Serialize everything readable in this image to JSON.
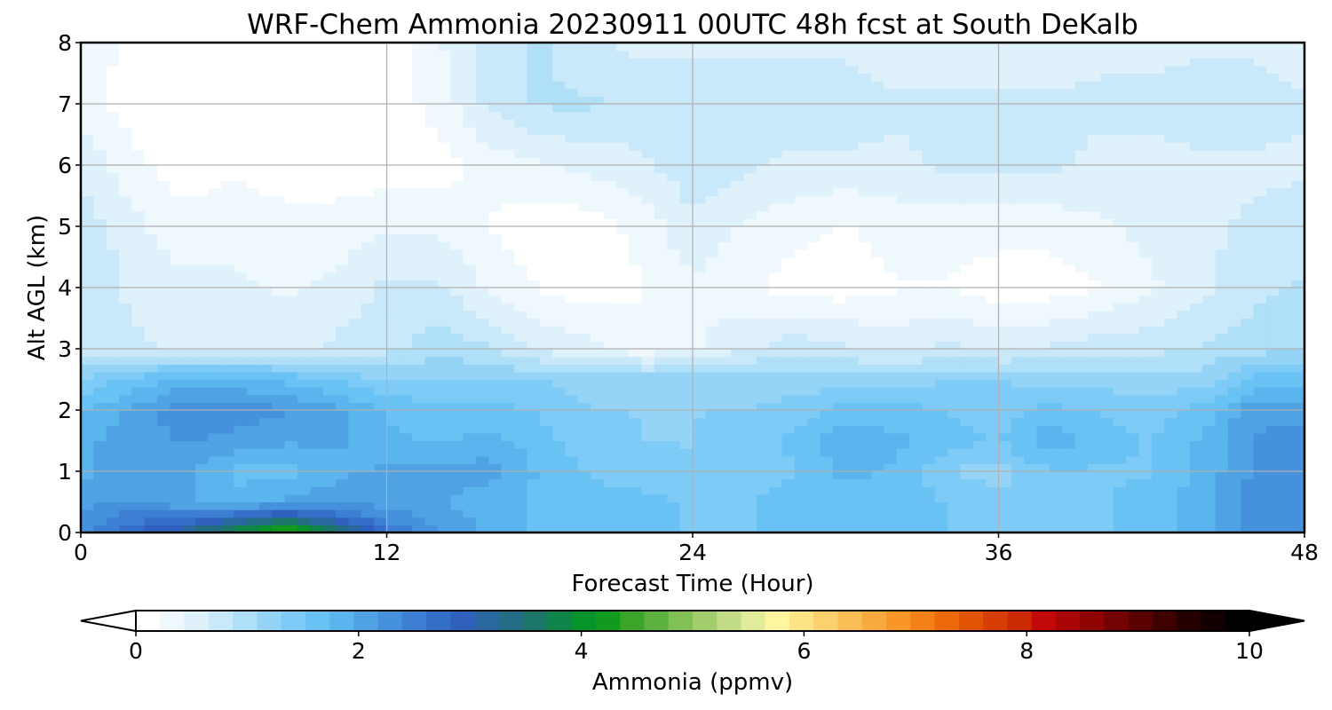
{
  "chart_data": {
    "type": "heatmap",
    "title": "WRF-Chem Ammonia  20230911 00UTC 48h fcst at South DeKalb",
    "xlabel": "Forecast Time (Hour)",
    "ylabel": "Alt AGL (km)",
    "xlim": [
      0,
      48
    ],
    "ylim": [
      0,
      8
    ],
    "x_ticks": [
      "0",
      "12",
      "24",
      "36",
      "48"
    ],
    "y_ticks": [
      "0",
      "1",
      "2",
      "3",
      "4",
      "5",
      "6",
      "7",
      "8"
    ],
    "grid": true,
    "x": [
      0,
      2,
      4,
      6,
      8,
      10,
      12,
      14,
      16,
      18,
      20,
      22,
      24,
      26,
      28,
      30,
      32,
      34,
      36,
      38,
      40,
      42,
      44,
      46,
      48
    ],
    "y": [
      0,
      0.25,
      0.5,
      1,
      1.5,
      2,
      2.5,
      3,
      4,
      5,
      6,
      7,
      8
    ],
    "z": [
      [
        2.2,
        2.8,
        3.2,
        3.9,
        4.6,
        3.6,
        2.6,
        2.2,
        1.9,
        1.7,
        1.6,
        1.6,
        1.5,
        1.5,
        1.6,
        1.6,
        1.7,
        1.5,
        1.4,
        1.5,
        1.5,
        1.6,
        1.9,
        2.3,
        2.3
      ],
      [
        2.2,
        2.5,
        2.6,
        2.9,
        3.2,
        2.8,
        2.3,
        2.1,
        1.9,
        1.7,
        1.6,
        1.6,
        1.5,
        1.5,
        1.6,
        1.6,
        1.7,
        1.5,
        1.4,
        1.5,
        1.5,
        1.6,
        1.9,
        2.3,
        2.3
      ],
      [
        2.1,
        2.2,
        2.0,
        1.8,
        2.0,
        2.1,
        2.1,
        2.0,
        1.8,
        1.7,
        1.6,
        1.6,
        1.5,
        1.5,
        1.6,
        1.6,
        1.7,
        1.5,
        1.4,
        1.5,
        1.5,
        1.6,
        1.9,
        2.3,
        2.3
      ],
      [
        1.9,
        2.1,
        2.0,
        1.7,
        1.6,
        1.9,
        2.0,
        2.0,
        2.1,
        1.7,
        1.5,
        1.4,
        1.3,
        1.4,
        1.5,
        1.8,
        1.7,
        1.3,
        1.2,
        1.5,
        1.5,
        1.5,
        1.8,
        2.2,
        2.3
      ],
      [
        1.9,
        2.1,
        2.2,
        2.1,
        2.0,
        2.0,
        1.8,
        1.7,
        1.8,
        1.6,
        1.4,
        1.3,
        1.3,
        1.4,
        1.6,
        1.9,
        1.8,
        1.6,
        1.5,
        1.9,
        1.6,
        1.5,
        1.8,
        2.2,
        2.3
      ],
      [
        1.7,
        2.0,
        2.3,
        2.3,
        2.2,
        2.0,
        1.7,
        1.6,
        1.6,
        1.5,
        1.3,
        1.3,
        1.3,
        1.3,
        1.4,
        1.6,
        1.6,
        1.5,
        1.4,
        1.6,
        1.5,
        1.4,
        1.6,
        2.1,
        2.1
      ],
      [
        1.3,
        1.6,
        1.8,
        1.8,
        1.7,
        1.5,
        1.3,
        1.3,
        1.3,
        1.3,
        1.2,
        1.2,
        1.2,
        1.2,
        1.2,
        1.2,
        1.2,
        1.3,
        1.3,
        1.2,
        1.2,
        1.2,
        1.2,
        1.6,
        1.6
      ],
      [
        0.8,
        0.7,
        0.6,
        0.6,
        0.6,
        0.7,
        0.8,
        1.0,
        0.9,
        0.6,
        0.5,
        0.3,
        0.4,
        0.6,
        0.8,
        0.7,
        0.6,
        0.7,
        0.6,
        0.7,
        0.8,
        0.8,
        0.9,
        1.0,
        1.1
      ],
      [
        0.9,
        0.6,
        0.5,
        0.5,
        0.4,
        0.5,
        0.7,
        0.7,
        0.4,
        0.2,
        0.1,
        0.2,
        0.4,
        0.3,
        0.1,
        0.1,
        0.2,
        0.2,
        0.1,
        0.1,
        0.2,
        0.4,
        0.6,
        0.8,
        0.9
      ],
      [
        0.8,
        0.5,
        0.3,
        0.3,
        0.3,
        0.3,
        0.4,
        0.4,
        0.2,
        0.1,
        0.1,
        0.3,
        0.6,
        0.4,
        0.3,
        0.2,
        0.3,
        0.3,
        0.3,
        0.3,
        0.4,
        0.5,
        0.6,
        0.7,
        0.8
      ],
      [
        0.6,
        0.3,
        0.1,
        0.2,
        0.1,
        0.1,
        0.1,
        0.1,
        0.3,
        0.4,
        0.5,
        0.6,
        0.8,
        0.7,
        0.6,
        0.6,
        0.6,
        0.7,
        0.7,
        0.7,
        0.6,
        0.6,
        0.6,
        0.6,
        0.6
      ],
      [
        0.3,
        0.1,
        0.0,
        0.0,
        0.0,
        0.0,
        0.1,
        0.3,
        0.7,
        0.9,
        0.9,
        0.8,
        0.8,
        0.8,
        0.8,
        0.8,
        0.7,
        0.7,
        0.7,
        0.7,
        0.7,
        0.7,
        0.8,
        0.8,
        0.7
      ],
      [
        0.3,
        0.2,
        0.1,
        0.0,
        0.0,
        0.0,
        0.1,
        0.4,
        0.8,
        0.9,
        0.7,
        0.6,
        0.6,
        0.6,
        0.6,
        0.6,
        0.5,
        0.5,
        0.5,
        0.5,
        0.6,
        0.6,
        0.6,
        0.6,
        0.5
      ]
    ],
    "colorbar": {
      "label": "Ammonia  (ppmv)",
      "vmin": 0,
      "vmax": 10,
      "ticks": [
        "0",
        "2",
        "4",
        "6",
        "8",
        "10"
      ],
      "extend": "both",
      "colors": [
        "#ffffff",
        "#eff8fd",
        "#dff1fb",
        "#c9e9fa",
        "#b0dff8",
        "#95d4f7",
        "#7dcbf6",
        "#68c2f4",
        "#5ab4ee",
        "#4fa3e5",
        "#4591dc",
        "#3d7fd3",
        "#356ec9",
        "#2f60bd",
        "#2a67a1",
        "#236d84",
        "#1b7667",
        "#0f8448",
        "#05932a",
        "#119a1d",
        "#3aa528",
        "#5db23f",
        "#80c054",
        "#a2cd6d",
        "#c3dc87",
        "#e1eb9a",
        "#fff59c",
        "#fde385",
        "#fcd06c",
        "#fbbd56",
        "#f9aa3f",
        "#f8962a",
        "#f48018",
        "#ed6909",
        "#e15305",
        "#d63e03",
        "#cc2a02",
        "#c30808",
        "#a90505",
        "#8f0303",
        "#740202",
        "#5a0101",
        "#3f0000",
        "#260000",
        "#120000",
        "#000000"
      ]
    }
  }
}
